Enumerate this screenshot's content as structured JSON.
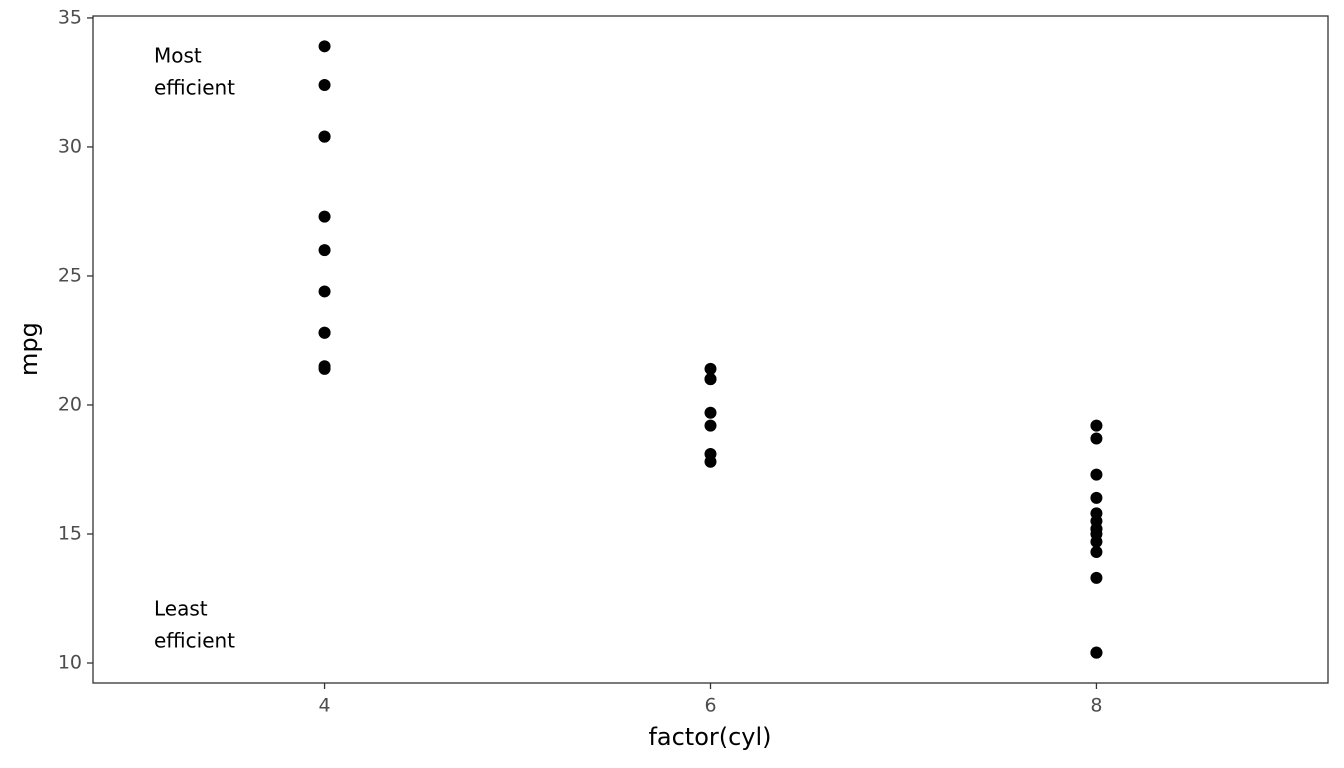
{
  "chart_data": {
    "type": "scatter",
    "x_label": "factor(cyl)",
    "y_label": "mpg",
    "categories": [
      "4",
      "6",
      "8"
    ],
    "x": [
      "4",
      "4",
      "4",
      "4",
      "4",
      "4",
      "4",
      "4",
      "4",
      "4",
      "4",
      "6",
      "6",
      "6",
      "6",
      "6",
      "6",
      "6",
      "8",
      "8",
      "8",
      "8",
      "8",
      "8",
      "8",
      "8",
      "8",
      "8",
      "8",
      "8",
      "8",
      "8"
    ],
    "values": [
      22.8,
      24.4,
      22.8,
      32.4,
      30.4,
      33.9,
      21.5,
      27.3,
      26.0,
      30.4,
      21.4,
      21.0,
      21.0,
      21.4,
      18.1,
      19.2,
      17.8,
      19.7,
      18.7,
      14.3,
      16.4,
      17.3,
      15.2,
      10.4,
      10.4,
      14.7,
      15.5,
      15.2,
      13.3,
      19.2,
      15.8,
      15.0
    ],
    "color": "#000000",
    "ylim": [
      9.225,
      35.075
    ],
    "yticks": [
      10,
      15,
      20,
      25,
      30,
      35
    ],
    "grid": false,
    "annotations": [
      {
        "lines": [
          "Most",
          "efficient"
        ]
      },
      {
        "lines": [
          "Least",
          "efficient"
        ]
      }
    ]
  }
}
